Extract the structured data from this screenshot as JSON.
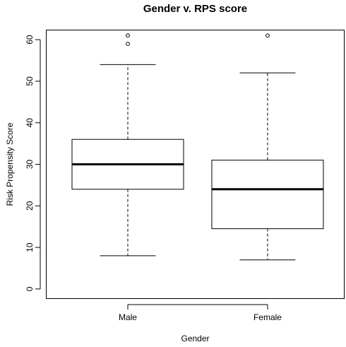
{
  "chart_data": {
    "type": "boxplot",
    "title": "Gender v. RPS score",
    "xlabel": "Gender",
    "ylabel": "Risk Propensity Score",
    "ylim": [
      -2.4,
      62.4
    ],
    "yticks": [
      0,
      10,
      20,
      30,
      40,
      50,
      60
    ],
    "grid": false,
    "legend": "none",
    "categories": [
      "Male",
      "Female"
    ],
    "boxes": [
      {
        "category": "Male",
        "whisker_low": 8,
        "q1": 24,
        "median": 30,
        "q3": 36,
        "whisker_high": 54,
        "outliers": [
          59,
          61
        ]
      },
      {
        "category": "Female",
        "whisker_low": 7,
        "q1": 14.5,
        "median": 24,
        "q3": 31,
        "whisker_high": 52,
        "outliers": [
          61
        ]
      }
    ]
  }
}
